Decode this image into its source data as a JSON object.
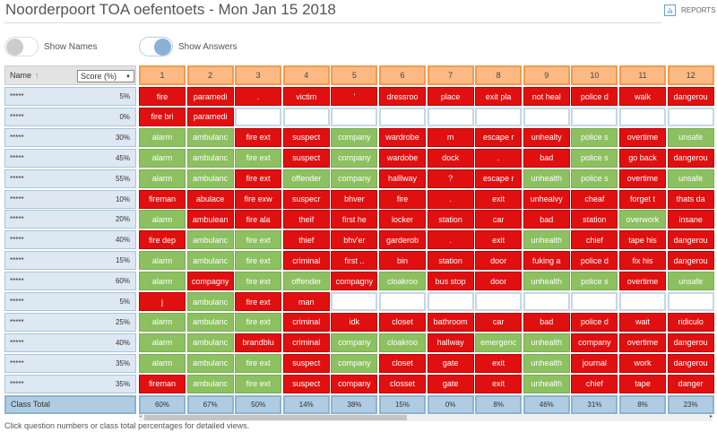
{
  "header": {
    "title": "Noorderpoort TOA oefentoets - Mon Jan 15 2018",
    "reports_label": "REPORTS"
  },
  "toggles": {
    "show_names": {
      "label": "Show Names",
      "on": false
    },
    "show_answers": {
      "label": "Show Answers",
      "on": true
    }
  },
  "table": {
    "name_header": "Name",
    "sort_icon": "↑",
    "score_select": "Score (%)",
    "questions": [
      "1",
      "2",
      "3",
      "4",
      "5",
      "6",
      "7",
      "8",
      "9",
      "10",
      "11",
      "12"
    ],
    "rows": [
      {
        "name": "*****",
        "score": "5%",
        "cells": [
          [
            "fire",
            "r"
          ],
          [
            "paramedi",
            "r"
          ],
          [
            ".",
            "r"
          ],
          [
            "victim",
            "r"
          ],
          [
            "'",
            "r"
          ],
          [
            "dressroo",
            "r"
          ],
          [
            "place",
            "r"
          ],
          [
            "exit pla",
            "r"
          ],
          [
            "not heal",
            "r"
          ],
          [
            "police d",
            "r"
          ],
          [
            "walk",
            "r"
          ],
          [
            "dangerou",
            "r"
          ]
        ]
      },
      {
        "name": "*****",
        "score": "0%",
        "cells": [
          [
            "fire bri",
            "r"
          ],
          [
            "paramedi",
            "r"
          ],
          [
            "",
            "e"
          ],
          [
            "",
            "e"
          ],
          [
            "",
            "e"
          ],
          [
            "",
            "e"
          ],
          [
            "",
            "e"
          ],
          [
            "",
            "e"
          ],
          [
            "",
            "e"
          ],
          [
            "",
            "e"
          ],
          [
            "",
            "e"
          ],
          [
            "",
            "e"
          ]
        ]
      },
      {
        "name": "*****",
        "score": "30%",
        "cells": [
          [
            "alarm",
            "g"
          ],
          [
            "ambulanc",
            "g"
          ],
          [
            "fire ext",
            "r"
          ],
          [
            "suspect",
            "r"
          ],
          [
            "company",
            "g"
          ],
          [
            "wardrobe",
            "r"
          ],
          [
            "m",
            "r"
          ],
          [
            "escape r",
            "r"
          ],
          [
            "unhealty",
            "r"
          ],
          [
            "police s",
            "g"
          ],
          [
            "overtime",
            "r"
          ],
          [
            "unsafe",
            "g"
          ]
        ]
      },
      {
        "name": "*****",
        "score": "45%",
        "cells": [
          [
            "alarm",
            "g"
          ],
          [
            "ambulanc",
            "g"
          ],
          [
            "fire ext",
            "g"
          ],
          [
            "suspect",
            "r"
          ],
          [
            "company",
            "g"
          ],
          [
            "wardobe",
            "r"
          ],
          [
            "dock",
            "r"
          ],
          [
            ".",
            "r"
          ],
          [
            "bad",
            "r"
          ],
          [
            "police s",
            "g"
          ],
          [
            "go back",
            "r"
          ],
          [
            "dangerou",
            "r"
          ]
        ]
      },
      {
        "name": "*****",
        "score": "55%",
        "cells": [
          [
            "alarm",
            "g"
          ],
          [
            "ambulanc",
            "g"
          ],
          [
            "fire ext",
            "r"
          ],
          [
            "offender",
            "g"
          ],
          [
            "company",
            "g"
          ],
          [
            "halllway",
            "r"
          ],
          [
            "?",
            "r"
          ],
          [
            "escape r",
            "r"
          ],
          [
            "unhealth",
            "g"
          ],
          [
            "police s",
            "g"
          ],
          [
            "overtime",
            "r"
          ],
          [
            "unsafe",
            "g"
          ]
        ]
      },
      {
        "name": "*****",
        "score": "10%",
        "cells": [
          [
            "fireman",
            "r"
          ],
          [
            "abulace",
            "r"
          ],
          [
            "fire exw",
            "r"
          ],
          [
            "suspecr",
            "r"
          ],
          [
            "bhver",
            "r"
          ],
          [
            "fire",
            "r"
          ],
          [
            ".",
            "r"
          ],
          [
            "exit",
            "r"
          ],
          [
            "unhealvy",
            "r"
          ],
          [
            "cheaf",
            "r"
          ],
          [
            "forget t",
            "r"
          ],
          [
            "thats da",
            "r"
          ]
        ]
      },
      {
        "name": "*****",
        "score": "20%",
        "cells": [
          [
            "alarm",
            "g"
          ],
          [
            "ambulean",
            "r"
          ],
          [
            "fire ala",
            "r"
          ],
          [
            "theif",
            "r"
          ],
          [
            "first he",
            "r"
          ],
          [
            "locker",
            "r"
          ],
          [
            "station",
            "r"
          ],
          [
            "car",
            "r"
          ],
          [
            "bad",
            "r"
          ],
          [
            "station",
            "r"
          ],
          [
            "overwork",
            "g"
          ],
          [
            "insane",
            "r"
          ]
        ]
      },
      {
        "name": "*****",
        "score": "40%",
        "cells": [
          [
            "fire dep",
            "r"
          ],
          [
            "ambulanc",
            "g"
          ],
          [
            "fire ext",
            "g"
          ],
          [
            "thief",
            "r"
          ],
          [
            "bhv'er",
            "r"
          ],
          [
            "garderob",
            "r"
          ],
          [
            ".",
            "r"
          ],
          [
            "exit",
            "r"
          ],
          [
            "unhealth",
            "g"
          ],
          [
            "chief",
            "r"
          ],
          [
            "tape his",
            "r"
          ],
          [
            "dangerou",
            "r"
          ]
        ]
      },
      {
        "name": "*****",
        "score": "15%",
        "cells": [
          [
            "alarm",
            "g"
          ],
          [
            "ambulanc",
            "g"
          ],
          [
            "fire ext",
            "g"
          ],
          [
            "criminal",
            "r"
          ],
          [
            "first ..",
            "r"
          ],
          [
            "bin",
            "r"
          ],
          [
            "station",
            "r"
          ],
          [
            "door",
            "r"
          ],
          [
            "fuking a",
            "r"
          ],
          [
            "police d",
            "r"
          ],
          [
            "fix his",
            "r"
          ],
          [
            "dangerou",
            "r"
          ]
        ]
      },
      {
        "name": "*****",
        "score": "60%",
        "cells": [
          [
            "alarm",
            "g"
          ],
          [
            "compagny",
            "r"
          ],
          [
            "fire ext",
            "g"
          ],
          [
            "offender",
            "g"
          ],
          [
            "compagny",
            "r"
          ],
          [
            "cloakroo",
            "g"
          ],
          [
            "bus stop",
            "r"
          ],
          [
            "door",
            "r"
          ],
          [
            "unhealth",
            "g"
          ],
          [
            "police s",
            "g"
          ],
          [
            "overtime",
            "r"
          ],
          [
            "unsafe",
            "g"
          ]
        ]
      },
      {
        "name": "*****",
        "score": "5%",
        "cells": [
          [
            "j",
            "r"
          ],
          [
            "ambulanc",
            "g"
          ],
          [
            "fire ext",
            "r"
          ],
          [
            "man",
            "r"
          ],
          [
            "",
            "e"
          ],
          [
            "",
            "e"
          ],
          [
            "",
            "e"
          ],
          [
            "",
            "e"
          ],
          [
            "",
            "e"
          ],
          [
            "",
            "e"
          ],
          [
            "",
            "e"
          ],
          [
            "",
            "e"
          ]
        ]
      },
      {
        "name": "*****",
        "score": "25%",
        "cells": [
          [
            "alarm",
            "g"
          ],
          [
            "ambulanc",
            "g"
          ],
          [
            "fire ext",
            "g"
          ],
          [
            "criminal",
            "r"
          ],
          [
            "idk",
            "r"
          ],
          [
            "closet",
            "r"
          ],
          [
            "bathroom",
            "r"
          ],
          [
            "car",
            "r"
          ],
          [
            "bad",
            "r"
          ],
          [
            "police d",
            "r"
          ],
          [
            "wait",
            "r"
          ],
          [
            "ridiculo",
            "r"
          ]
        ]
      },
      {
        "name": "*****",
        "score": "40%",
        "cells": [
          [
            "alarm",
            "g"
          ],
          [
            "ambulanc",
            "g"
          ],
          [
            "brandblu",
            "r"
          ],
          [
            "criminal",
            "r"
          ],
          [
            "company",
            "g"
          ],
          [
            "cloakroo",
            "g"
          ],
          [
            "hallway",
            "r"
          ],
          [
            "emergenc",
            "g"
          ],
          [
            "unhealth",
            "g"
          ],
          [
            "company",
            "r"
          ],
          [
            "overtime",
            "r"
          ],
          [
            "dangerou",
            "r"
          ]
        ]
      },
      {
        "name": "*****",
        "score": "35%",
        "cells": [
          [
            "alarm",
            "g"
          ],
          [
            "ambulanc",
            "g"
          ],
          [
            "fire ext",
            "g"
          ],
          [
            "suspect",
            "r"
          ],
          [
            "company",
            "g"
          ],
          [
            "closet",
            "r"
          ],
          [
            "gate",
            "r"
          ],
          [
            "exit",
            "r"
          ],
          [
            "unhealth",
            "g"
          ],
          [
            "journal",
            "r"
          ],
          [
            "work",
            "r"
          ],
          [
            "dangerou",
            "r"
          ]
        ]
      },
      {
        "name": "*****",
        "score": "35%",
        "cells": [
          [
            "fireman",
            "r"
          ],
          [
            "ambulanc",
            "g"
          ],
          [
            "fire ext",
            "g"
          ],
          [
            "suspect",
            "r"
          ],
          [
            "company",
            "r"
          ],
          [
            "closset",
            "r"
          ],
          [
            "gate",
            "r"
          ],
          [
            "exit",
            "r"
          ],
          [
            "unhealth",
            "g"
          ],
          [
            "chief",
            "r"
          ],
          [
            "tape",
            "r"
          ],
          [
            "danger",
            "r"
          ]
        ]
      }
    ],
    "class_total_label": "Class Total",
    "class_totals": [
      "60%",
      "67%",
      "50%",
      "14%",
      "38%",
      "15%",
      "0%",
      "8%",
      "46%",
      "31%",
      "8%",
      "23%"
    ]
  },
  "footer": "Click question numbers or class total percentages for detailed views.",
  "colors": {
    "correct": "#8cc060",
    "incorrect": "#e01010",
    "header": "#fcb983",
    "total": "#b0cce2"
  }
}
